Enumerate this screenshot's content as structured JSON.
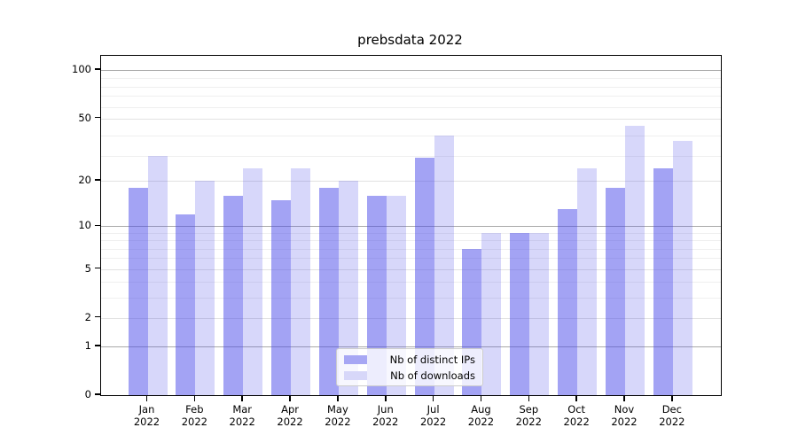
{
  "title": "prebsdata 2022",
  "chart_data": {
    "type": "bar",
    "title": "prebsdata 2022",
    "categories": [
      "Jan 2022",
      "Feb 2022",
      "Mar 2022",
      "Apr 2022",
      "May 2022",
      "Jun 2022",
      "Jul 2022",
      "Aug 2022",
      "Sep 2022",
      "Oct 2022",
      "Nov 2022",
      "Dec 2022"
    ],
    "series": [
      {
        "name": "Nb of distinct IPs",
        "values": [
          18,
          12,
          16,
          15,
          18,
          16,
          28,
          7,
          9,
          13,
          18,
          24
        ],
        "color": "rgba(72,72,233,0.50)",
        "legend_color": "#a7a7f4"
      },
      {
        "name": "Nb of downloads",
        "values": [
          29,
          20,
          24,
          24,
          20,
          16,
          39,
          9,
          9,
          24,
          45,
          36
        ],
        "color": "rgba(72,72,233,0.22)",
        "legend_color": "#d7d7f9"
      }
    ],
    "y_scale": "log10(1+value)",
    "y_ticks": [
      100,
      50,
      20,
      10,
      5,
      2,
      1,
      0
    ],
    "y_major_gridlines": [
      1,
      10,
      100
    ],
    "y_mid_gridlines": [
      2,
      5,
      20,
      50
    ],
    "y_minor_gridlines": [
      3,
      4,
      6,
      7,
      8,
      9,
      29,
      39,
      59,
      69,
      79,
      89
    ],
    "ylim": [
      0,
      124
    ],
    "grid": true,
    "legend_position": "lower center",
    "axis_color": "#000000",
    "major_grid_color": "#a9a9a9",
    "minor_grid_color": "#efefef"
  }
}
